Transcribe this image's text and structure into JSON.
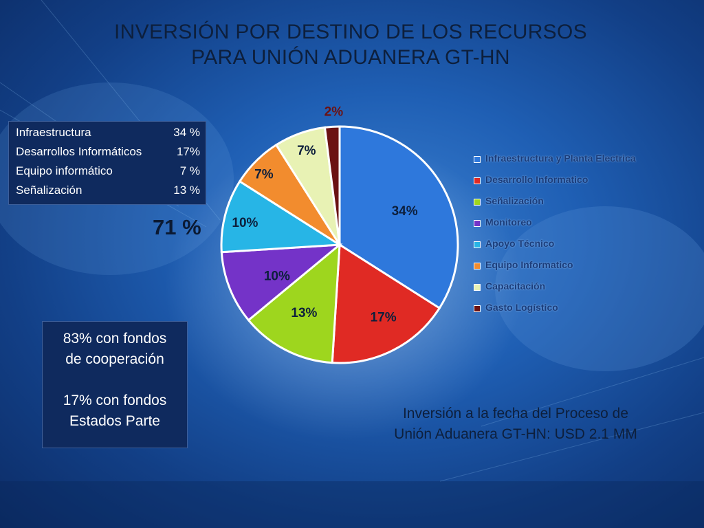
{
  "title": {
    "line1": "INVERSIÓN POR DESTINO DE LOS RECURSOS",
    "line2": "PARA UNIÓN ADUANERA GT-HN"
  },
  "summary_box": {
    "rows": [
      {
        "label": "Infraestructura",
        "value": "34 %"
      },
      {
        "label": "Desarrollos Informáticos",
        "value": "17%"
      },
      {
        "label": "Equipo informático",
        "value": "7 %"
      },
      {
        "label": "Señalización",
        "value": "13 %"
      }
    ]
  },
  "total_pct": "71 %",
  "funds_box": {
    "line1": "83% con fondos",
    "line2": "de cooperación",
    "line3": "17% con fondos",
    "line4": "Estados Parte"
  },
  "footer_note": {
    "line1": "Inversión a la fecha del Proceso de",
    "line2": "Unión Aduanera GT-HN: USD 2.1 MM"
  },
  "chart_data": {
    "type": "pie",
    "title": "",
    "slices": [
      {
        "label": "Infraestructura y Planta Electrica",
        "value": 34,
        "data_label": "34%",
        "color": "#2e78dc"
      },
      {
        "label": "Desarrollo Informatico",
        "value": 17,
        "data_label": "17%",
        "color": "#e02a24"
      },
      {
        "label": "Señalización",
        "value": 13,
        "data_label": "13%",
        "color": "#9ed61e"
      },
      {
        "label": "Monitoreo",
        "value": 10,
        "data_label": "10%",
        "color": "#7433c8"
      },
      {
        "label": "Apoyo Técnico",
        "value": 10,
        "data_label": "10%",
        "color": "#27b5e6"
      },
      {
        "label": "Equipo Informatico",
        "value": 7,
        "data_label": "7%",
        "color": "#f28c2e"
      },
      {
        "label": "Capacitación",
        "value": 7,
        "data_label": "7%",
        "color": "#e8f2b4"
      },
      {
        "label": "Gasto Logístico",
        "value": 2,
        "data_label": "2%",
        "color": "#6b1212"
      }
    ],
    "legend_position": "right",
    "label_color": "#0d1f3c"
  }
}
